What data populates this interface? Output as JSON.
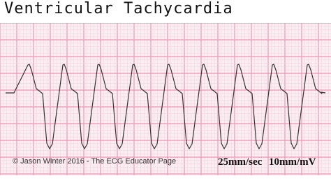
{
  "header": {
    "title": "Ventricular Tachycardia"
  },
  "footer": {
    "copyright": "© Jason Winter 2016 - The ECG Educator Page",
    "paper_speed": "25mm/sec",
    "gain": "10mm/mV"
  }
}
